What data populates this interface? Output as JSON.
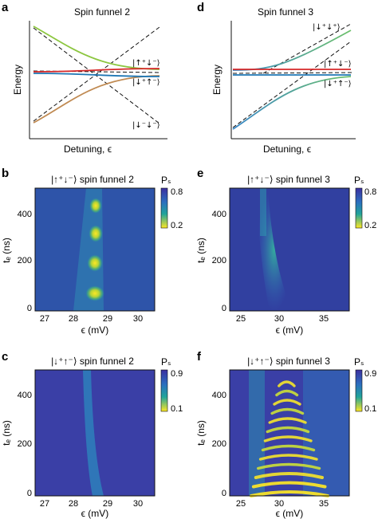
{
  "panels": {
    "a": {
      "label": "a",
      "title": "Spin funnel 2",
      "ylabel": "Energy",
      "xlabel": "Detuning, ϵ",
      "states": [
        "|↑⁺↓⁻⟩",
        "|↓⁺↑⁻⟩",
        "|↓⁻↓⁻⟩"
      ]
    },
    "d": {
      "label": "d",
      "title": "Spin funnel 3",
      "ylabel": "Energy",
      "xlabel": "Detuning, ϵ",
      "states": [
        "|↓⁺↓⁺⟩",
        "|↑⁺↓⁻⟩",
        "|↓⁺↑⁻⟩"
      ]
    },
    "b": {
      "label": "b",
      "title": "|↑⁺↓⁻⟩ spin funnel 2",
      "ylabel": "tₑ (ns)",
      "xlabel": "ϵ (mV)",
      "xticks": [
        "27",
        "28",
        "29",
        "30"
      ],
      "yticks": [
        "0",
        "200",
        "400"
      ],
      "cbar_label": "Pₛ",
      "cbar_ticks": [
        "0.8",
        "0.2"
      ]
    },
    "e": {
      "label": "e",
      "title": "|↑⁺↓⁻⟩ spin funnel 3",
      "ylabel": "tₑ (ns)",
      "xlabel": "ϵ (mV)",
      "xticks": [
        "25",
        "30",
        "35"
      ],
      "yticks": [
        "0",
        "200",
        "400"
      ],
      "cbar_label": "Pₛ",
      "cbar_ticks": [
        "0.8",
        "0.2"
      ]
    },
    "c": {
      "label": "c",
      "title": "|↓⁺↑⁻⟩ spin funnel 2",
      "ylabel": "tₑ (ns)",
      "xlabel": "ϵ (mV)",
      "xticks": [
        "27",
        "28",
        "29",
        "30"
      ],
      "yticks": [
        "0",
        "200",
        "400"
      ],
      "cbar_label": "Pₛ",
      "cbar_ticks": [
        "0.9",
        "0.1"
      ]
    },
    "f": {
      "label": "f",
      "title": "|↓⁺↑⁻⟩ spin funnel 3",
      "ylabel": "tₑ (ns)",
      "xlabel": "ϵ (mV)",
      "xticks": [
        "25",
        "30",
        "35"
      ],
      "yticks": [
        "0",
        "200",
        "400"
      ],
      "cbar_label": "Pₛ",
      "cbar_ticks": [
        "0.9",
        "0.1"
      ]
    }
  },
  "colors": {
    "upper_branch": "#8cc63f",
    "lower_branch": "#c08a52",
    "red_level": "#d62728",
    "blue_level": "#1f77b4",
    "teal_branch": "#3aa3a0",
    "colormap_low": "#fde725",
    "colormap_mid": "#21918c",
    "colormap_high": "#3b2fa0"
  }
}
